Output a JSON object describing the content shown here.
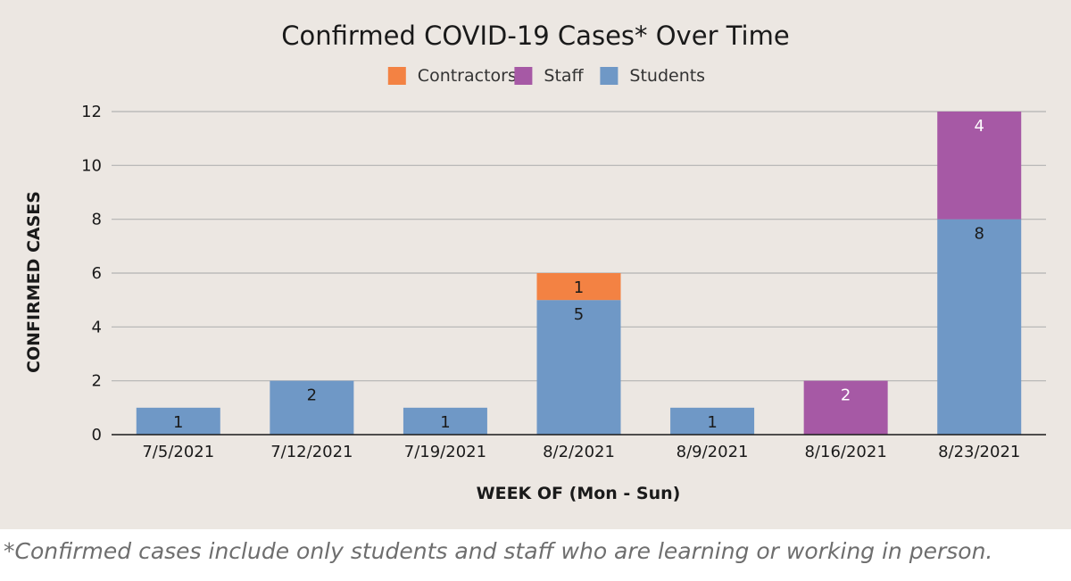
{
  "chart_data": {
    "type": "bar",
    "stacked": true,
    "title": "Confirmed COVID-19 Cases* Over Time",
    "xlabel": "WEEK OF (Mon - Sun)",
    "ylabel": "CONFIRMED CASES",
    "ylim": [
      0,
      12
    ],
    "yticks": [
      0,
      2,
      4,
      6,
      8,
      10,
      12
    ],
    "grid": true,
    "legend_position": "top-center",
    "categories": [
      "7/5/2021",
      "7/12/2021",
      "7/19/2021",
      "8/2/2021",
      "8/9/2021",
      "8/16/2021",
      "8/23/2021"
    ],
    "legend_order": [
      "Contractors",
      "Staff",
      "Students"
    ],
    "series": [
      {
        "name": "Students",
        "color": "#6f98c6",
        "label_color": "#1a1a1a",
        "values": [
          1,
          2,
          1,
          5,
          1,
          0,
          8
        ]
      },
      {
        "name": "Staff",
        "color": "#a659a5",
        "label_color": "#ffffff",
        "values": [
          0,
          0,
          0,
          0,
          0,
          2,
          4
        ]
      },
      {
        "name": "Contractors",
        "color": "#f38243",
        "label_color": "#1a1a1a",
        "values": [
          0,
          0,
          0,
          1,
          0,
          0,
          0
        ]
      }
    ]
  },
  "footnote": "*Confirmed cases include only students and staff who are learning or working in person."
}
